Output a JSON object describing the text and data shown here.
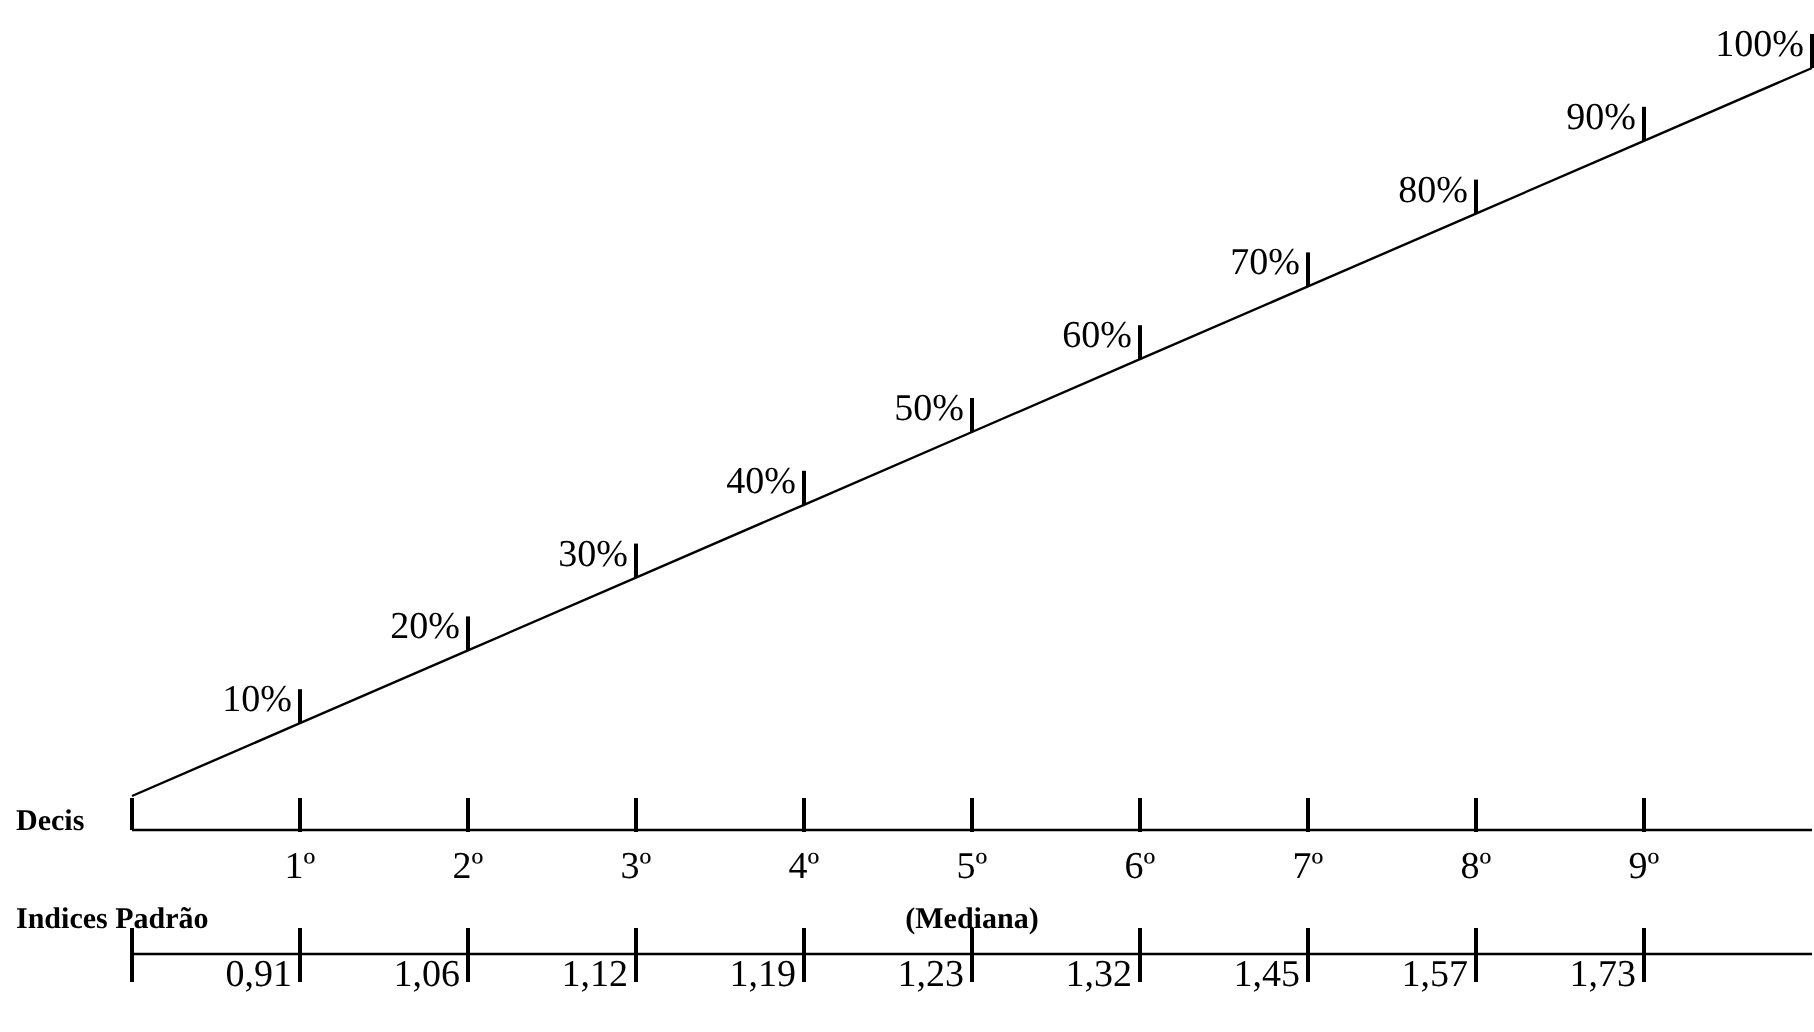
{
  "chart_data": {
    "type": "line",
    "x": [
      0,
      1,
      2,
      3,
      4,
      5,
      6,
      7,
      8,
      9,
      10
    ],
    "values": [
      0,
      10,
      20,
      30,
      40,
      50,
      60,
      70,
      80,
      90,
      100
    ],
    "value_labels": [
      null,
      "10%",
      "20%",
      "30%",
      "40%",
      "50%",
      "60%",
      "70%",
      "80%",
      "90%",
      "100%"
    ],
    "xlabel": "Decis",
    "xlim": [
      0,
      10
    ],
    "xticks": [
      {
        "value": 1,
        "label": "1º"
      },
      {
        "value": 2,
        "label": "2º"
      },
      {
        "value": 3,
        "label": "3º"
      },
      {
        "value": 4,
        "label": "4º"
      },
      {
        "value": 5,
        "label": "5º"
      },
      {
        "value": 6,
        "label": "6º"
      },
      {
        "value": 7,
        "label": "7º"
      },
      {
        "value": 8,
        "label": "8º"
      },
      {
        "value": 9,
        "label": "9º"
      }
    ],
    "annotations": [
      "Indices Padrão",
      "(Mediana)",
      "0,91",
      "1,06",
      "1,12",
      "1,19",
      "1,23",
      "1,32",
      "1,45",
      "1,57",
      "1,73"
    ],
    "tick_labels": "x",
    "color": "#000000",
    "marker": "none",
    "line_style": "solid"
  }
}
